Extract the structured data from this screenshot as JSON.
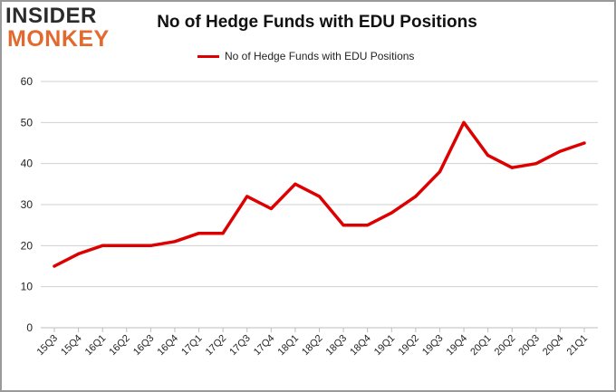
{
  "logo": {
    "line1": "INSIDER",
    "line2": "MONKEY"
  },
  "colors": {
    "line": "#dd0000",
    "grid": "#d0d0d0",
    "logo_dark": "#2b2b2b",
    "logo_accent": "#e36a2e"
  },
  "chart_data": {
    "type": "line",
    "title": "No of Hedge Funds with EDU Positions",
    "xlabel": "",
    "ylabel": "",
    "ylim": [
      0,
      60
    ],
    "yticks": [
      0,
      10,
      20,
      30,
      40,
      50,
      60
    ],
    "grid": true,
    "legend_placement": "top-center",
    "categories": [
      "15Q3",
      "15Q4",
      "16Q1",
      "16Q2",
      "16Q3",
      "16Q4",
      "17Q1",
      "17Q2",
      "17Q3",
      "17Q4",
      "18Q1",
      "18Q2",
      "18Q3",
      "18Q4",
      "19Q1",
      "19Q2",
      "19Q3",
      "19Q4",
      "20Q1",
      "20Q2",
      "20Q3",
      "20Q4",
      "21Q1"
    ],
    "series": [
      {
        "name": "No of Hedge Funds with EDU Positions",
        "values": [
          15,
          18,
          20,
          20,
          20,
          21,
          23,
          23,
          32,
          29,
          35,
          32,
          25,
          25,
          28,
          32,
          38,
          50,
          42,
          39,
          40,
          43,
          45
        ]
      }
    ]
  }
}
